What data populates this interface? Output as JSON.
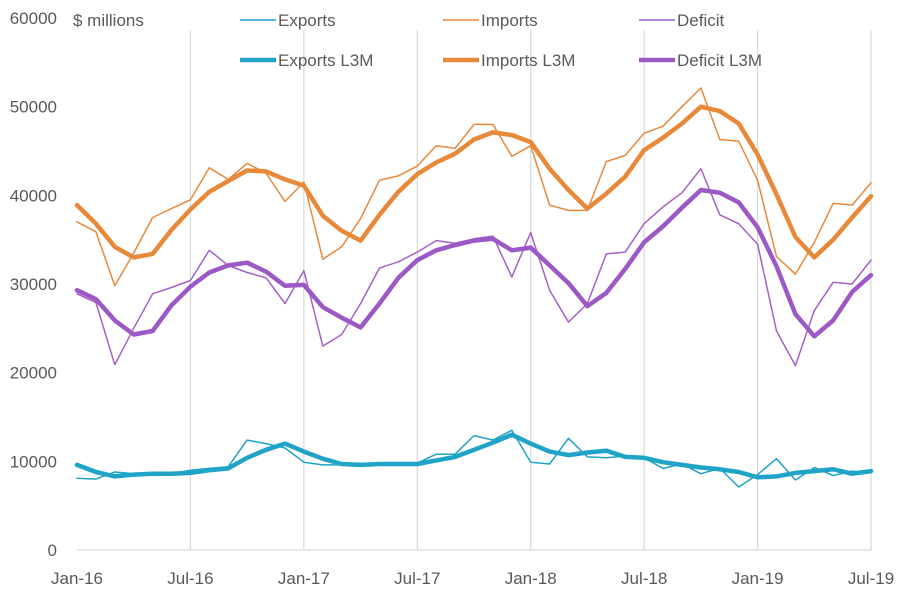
{
  "chart_data": {
    "type": "line",
    "unit_label": "$ millions",
    "x": [
      "Jan-16",
      "Feb-16",
      "Mar-16",
      "Apr-16",
      "May-16",
      "Jun-16",
      "Jul-16",
      "Aug-16",
      "Sep-16",
      "Oct-16",
      "Nov-16",
      "Dec-16",
      "Jan-17",
      "Feb-17",
      "Mar-17",
      "Apr-17",
      "May-17",
      "Jun-17",
      "Jul-17",
      "Aug-17",
      "Sep-17",
      "Oct-17",
      "Nov-17",
      "Dec-17",
      "Jan-18",
      "Feb-18",
      "Mar-18",
      "Apr-18",
      "May-18",
      "Jun-18",
      "Jul-18",
      "Aug-18",
      "Sep-18",
      "Oct-18",
      "Nov-18",
      "Dec-18",
      "Jan-19",
      "Feb-19",
      "Mar-19",
      "Apr-19",
      "May-19",
      "Jun-19",
      "Jul-19"
    ],
    "x_tick_labels": [
      "Jan-16",
      "Jul-16",
      "Jan-17",
      "Jul-17",
      "Jan-18",
      "Jul-18",
      "Jan-19",
      "Jul-19"
    ],
    "y_ticks": [
      0,
      10000,
      20000,
      30000,
      40000,
      50000,
      60000
    ],
    "ylim": [
      0,
      60000
    ],
    "grid": "vertical at x tick labels",
    "legend": "top, two rows",
    "series": [
      {
        "name": "Exports",
        "color": "#1fa3c6",
        "width": 1.5,
        "values": [
          8100,
          8000,
          8800,
          8600,
          8500,
          8600,
          9000,
          9200,
          9400,
          12400,
          12000,
          11500,
          9900,
          9600,
          9600,
          9600,
          9700,
          9700,
          9800,
          10800,
          10800,
          12900,
          12400,
          13500,
          9900,
          9700,
          12600,
          10500,
          10400,
          10600,
          10400,
          9200,
          9700,
          8600,
          9200,
          7100,
          8500,
          10300,
          7900,
          9300,
          8400,
          8900,
          8700
        ]
      },
      {
        "name": "Imports",
        "color": "#e8893a",
        "width": 1.5,
        "values": [
          37000,
          35900,
          29800,
          33500,
          37500,
          38500,
          39500,
          43100,
          41800,
          43600,
          42500,
          39300,
          41500,
          32800,
          34200,
          37400,
          41700,
          42200,
          43300,
          45600,
          45300,
          48000,
          48000,
          44400,
          45600,
          38900,
          38300,
          38300,
          43800,
          44500,
          47000,
          47800,
          50000,
          52100,
          46300,
          46100,
          41700,
          33100,
          31100,
          34700,
          39100,
          38900,
          41400
        ]
      },
      {
        "name": "Deficit",
        "color": "#a561c7",
        "width": 1.5,
        "values": [
          28900,
          27900,
          20900,
          25000,
          28900,
          29600,
          30400,
          33800,
          32100,
          31300,
          30700,
          27800,
          31500,
          23000,
          24300,
          27800,
          31800,
          32500,
          33600,
          34900,
          34600,
          35100,
          35400,
          30800,
          35800,
          29300,
          25700,
          27800,
          33400,
          33600,
          36800,
          38700,
          40300,
          43000,
          37800,
          36800,
          34500,
          24700,
          20800,
          27000,
          30200,
          30000,
          32700
        ]
      },
      {
        "name": "Exports L3M",
        "color": "#1fa3c6",
        "width": 4.5,
        "values": [
          9600,
          8800,
          8300,
          8500,
          8600,
          8600,
          8700,
          9000,
          9200,
          10400,
          11300,
          12000,
          11100,
          10300,
          9700,
          9600,
          9700,
          9700,
          9700,
          10100,
          10500,
          11300,
          12100,
          13000,
          12000,
          11100,
          10700,
          11000,
          11200,
          10500,
          10400,
          9900,
          9600,
          9300,
          9100,
          8800,
          8200,
          8300,
          8700,
          8900,
          9100,
          8600,
          8900
        ]
      },
      {
        "name": "Imports L3M",
        "color": "#e8893a",
        "width": 4.5,
        "values": [
          38900,
          36800,
          34200,
          33000,
          33400,
          36100,
          38400,
          40400,
          41600,
          42800,
          42700,
          41800,
          41100,
          37700,
          36000,
          34900,
          37800,
          40400,
          42400,
          43700,
          44700,
          46300,
          47100,
          46800,
          46000,
          43000,
          40600,
          38500,
          40200,
          42100,
          45100,
          46500,
          48100,
          50000,
          49500,
          48100,
          44600,
          40100,
          35300,
          33000,
          35000,
          37500,
          39900
        ]
      },
      {
        "name": "Deficit L3M",
        "color": "#9c58c4",
        "width": 4.5,
        "values": [
          29300,
          28300,
          25900,
          24300,
          24700,
          27600,
          29700,
          31300,
          32100,
          32400,
          31400,
          29800,
          29900,
          27400,
          26200,
          25100,
          27800,
          30700,
          32700,
          33800,
          34400,
          34900,
          35100,
          33800,
          34100,
          32100,
          30100,
          27500,
          29000,
          31700,
          34700,
          36500,
          38600,
          40600,
          40300,
          39200,
          36400,
          32000,
          26600,
          24100,
          25900,
          29100,
          31000
        ]
      }
    ]
  }
}
